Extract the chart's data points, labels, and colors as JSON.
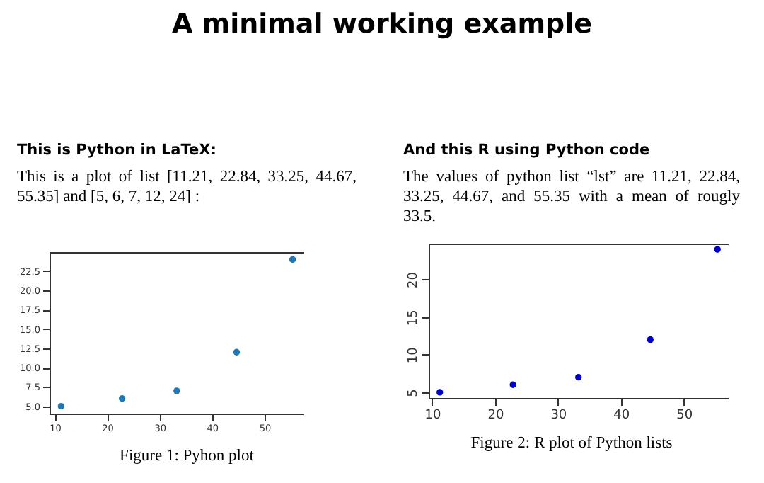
{
  "chart_data": [
    {
      "type": "scatter",
      "title": "This is Python in LaTeX:",
      "subtitle": "This is a plot of list [11.21, 22.84, 33.25, 44.67, 55.35] and [5, 6, 7, 12, 24] :",
      "annotations": [
        "A minimal working example",
        "Figure 1: Pyhon plot"
      ],
      "x": [
        11.21,
        22.84,
        33.25,
        44.67,
        55.35
      ],
      "series": [
        {
          "color": "#1f77b4",
          "values": [
            5,
            6,
            7,
            12,
            24
          ]
        }
      ],
      "xlim": [
        9.0,
        57.56
      ],
      "xticks": [
        10,
        20,
        30,
        40,
        50
      ],
      "ylim": [
        4.05,
        24.95
      ],
      "yticks": [
        {
          "value": 5,
          "label": "5.0"
        },
        {
          "value": 7.5,
          "label": "7.5"
        },
        {
          "value": 10,
          "label": "10.0"
        },
        {
          "value": 12.5,
          "label": "12.5"
        },
        {
          "value": 15,
          "label": "15.0"
        },
        {
          "value": 17.5,
          "label": "17.5"
        },
        {
          "value": 20,
          "label": "20.0"
        },
        {
          "value": 22.5,
          "label": "22.5"
        }
      ],
      "grid": false,
      "marker": "circle"
    },
    {
      "type": "scatter",
      "title": "And this R using Python code",
      "subtitle": "The values of python list “lst” are 11.21, 22.84, 33.25, 44.67, and 55.35 with a mean of rougly 33.5.",
      "annotations": [
        "Figure 2: R plot of Python lists"
      ],
      "x": [
        11.21,
        22.84,
        33.25,
        44.67,
        55.35
      ],
      "series": [
        {
          "color": "#0000c8",
          "values": [
            5,
            6,
            7,
            12,
            24
          ]
        }
      ],
      "xlim": [
        9.44,
        57.12
      ],
      "xticks": [
        10,
        20,
        30,
        40,
        50
      ],
      "ylim": [
        4.24,
        24.76
      ],
      "yticks": [
        5,
        10,
        15,
        20
      ],
      "grid": false,
      "marker": "circle"
    }
  ]
}
